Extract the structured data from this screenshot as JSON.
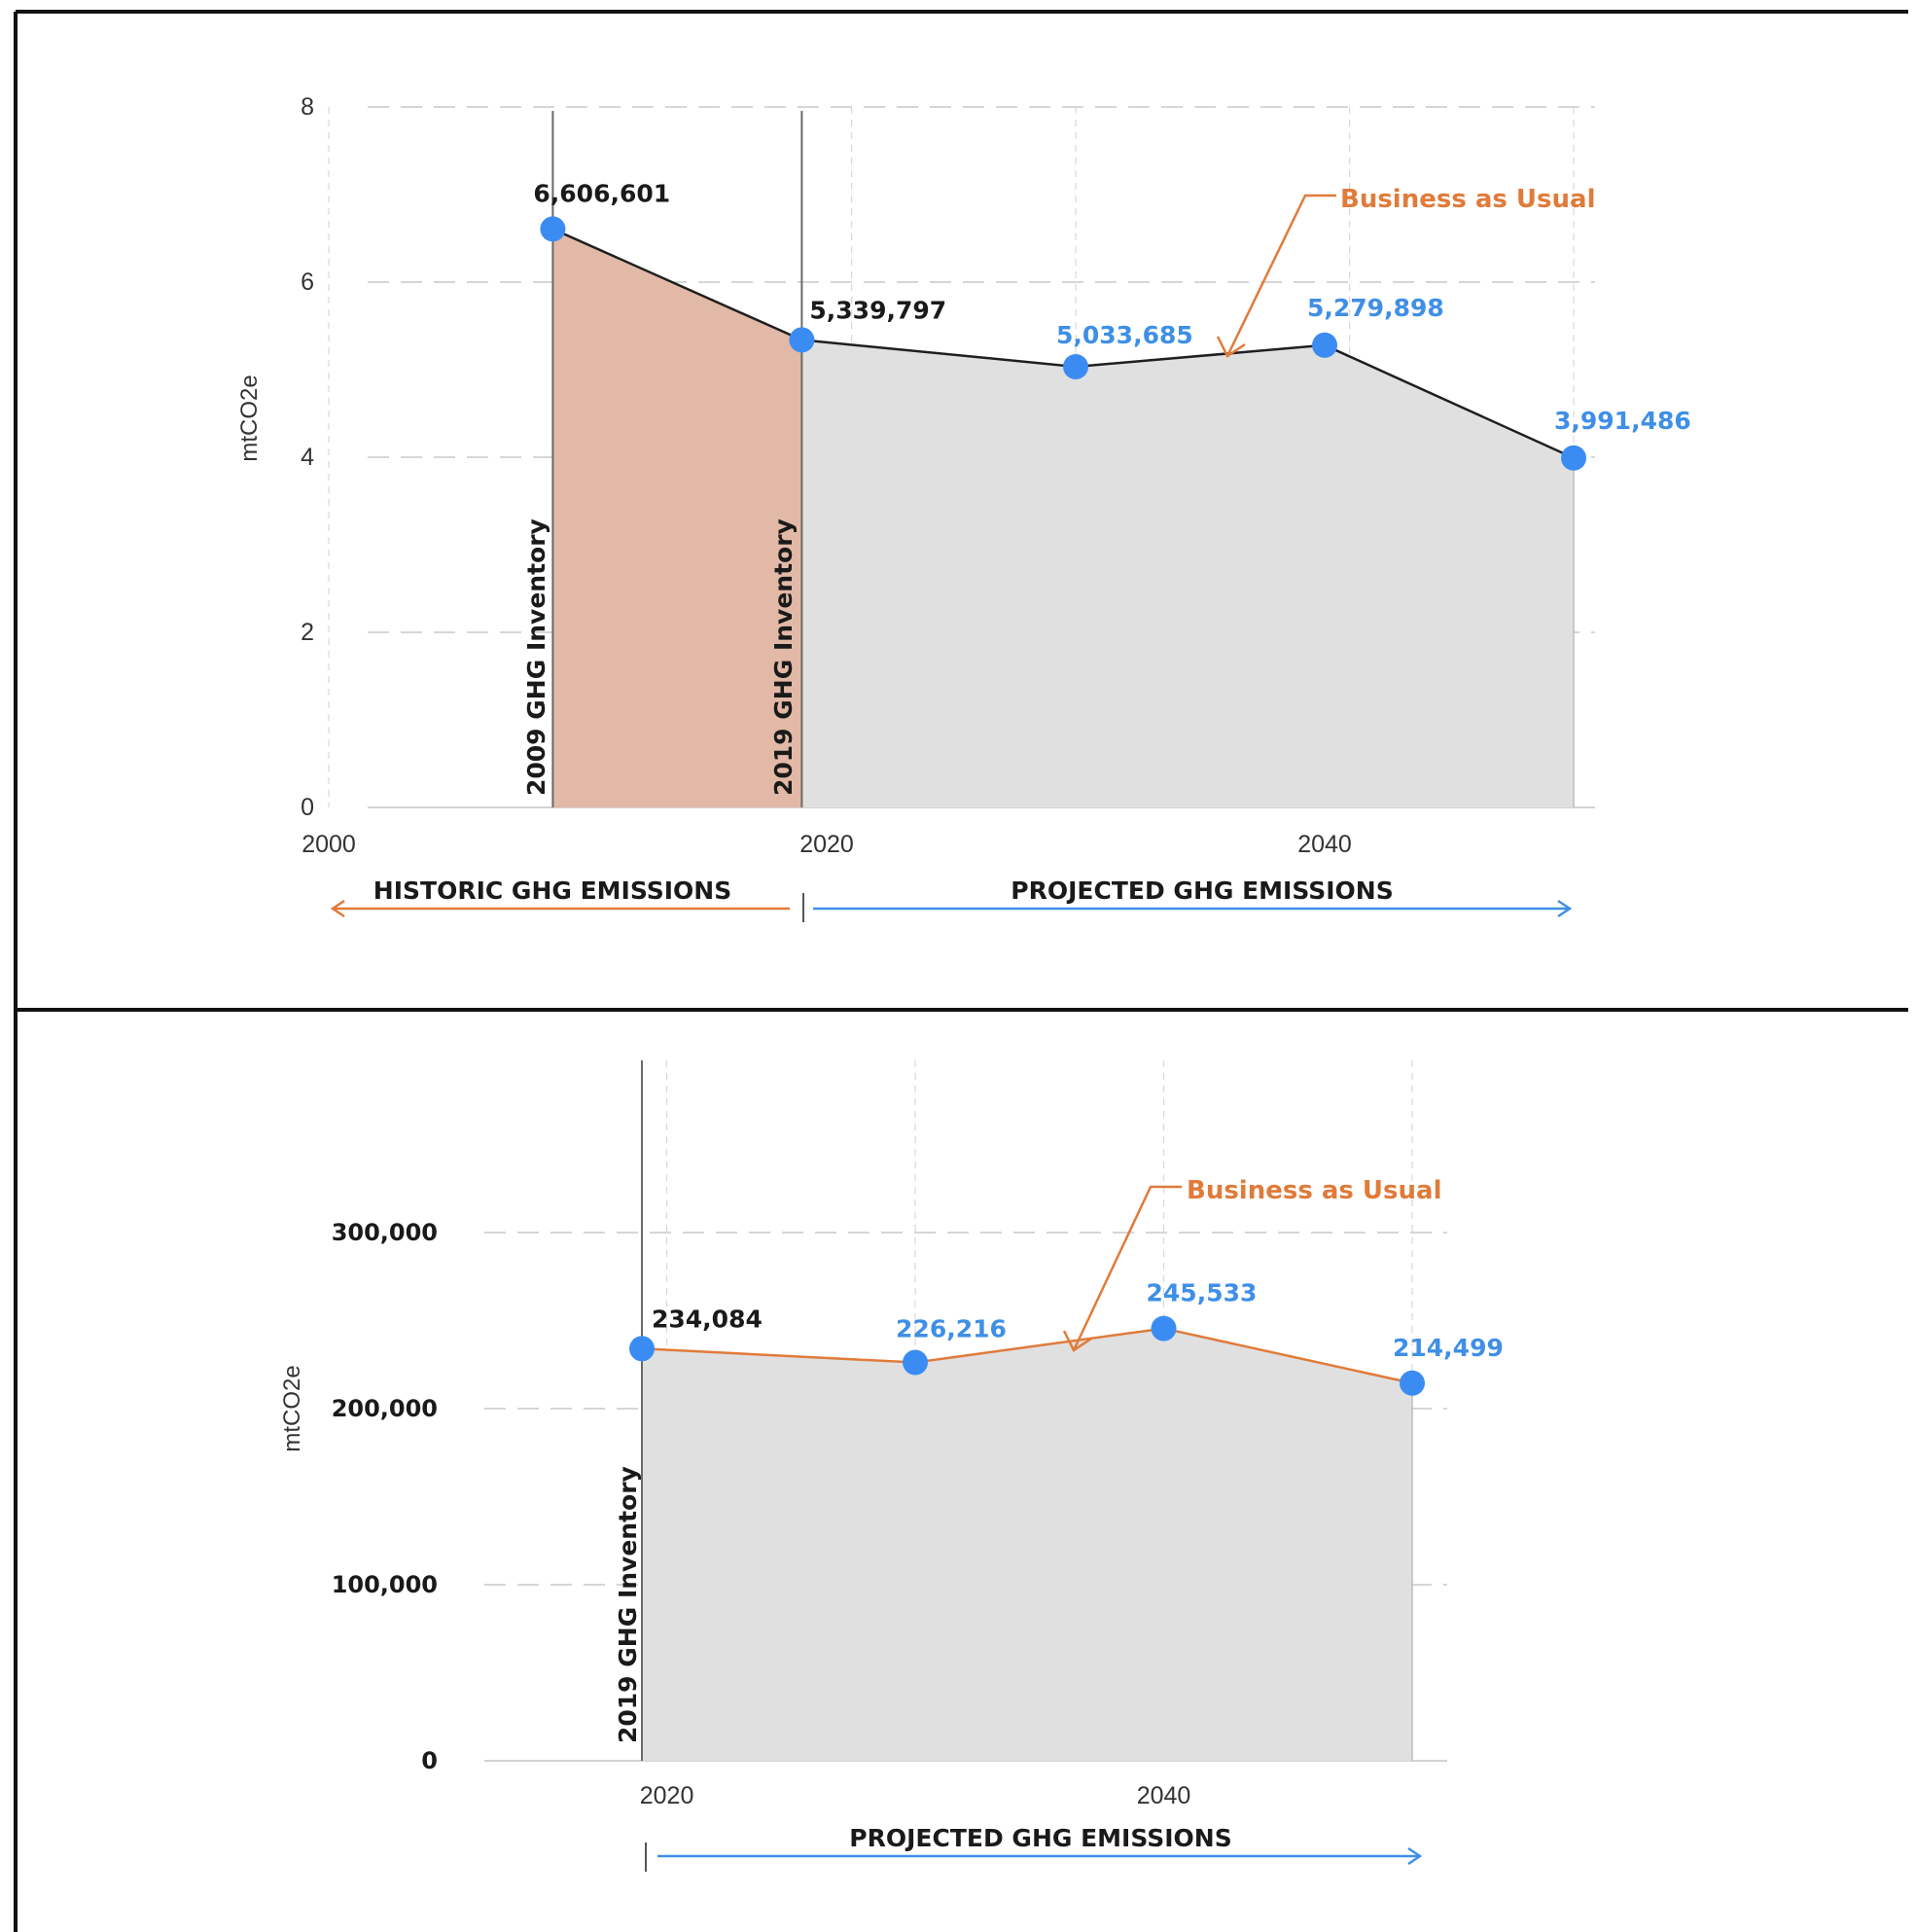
{
  "colors": {
    "accent_orange": "#e07b3a",
    "accent_blue": "#3f8fe6",
    "marker_blue": "#3b8cf2",
    "historic_fill": "#e2b9a6",
    "projected_fill": "#e0e0e0",
    "grid": "#c8c8c8",
    "frame": "#111111"
  },
  "chart_data": [
    {
      "type": "area",
      "ylabel": "mtCO2e",
      "ylim": [
        0,
        8
      ],
      "y_ticks": [
        "0",
        "2",
        "4",
        "6",
        "8"
      ],
      "xlim": [
        2000,
        2050
      ],
      "x_ticks": [
        "2000",
        "2020",
        "2040"
      ],
      "grid": true,
      "series": [
        {
          "x": [
            2009,
            2019,
            2030,
            2040,
            2050
          ],
          "values": [
            6.606601,
            5.339797,
            5.033685,
            5.279898,
            3.991486
          ],
          "labels": [
            "6,606,601",
            "5,339,797",
            "5,033,685",
            "5,279,898",
            "3,991,486"
          ]
        }
      ],
      "annotations": {
        "inventory_2009": "2009 GHG Inventory",
        "inventory_2019": "2019 GHG Inventory",
        "bau": "Business as Usual",
        "historic": "HISTORIC GHG EMISSIONS",
        "projected": "PROJECTED GHG EMISSIONS"
      }
    },
    {
      "type": "area",
      "ylabel": "mtCO2e",
      "ylim": [
        0,
        300000
      ],
      "y_ticks": [
        "0",
        "100,000",
        "200,000",
        "300,000"
      ],
      "xlim": [
        2019,
        2050
      ],
      "x_ticks": [
        "2020",
        "2040"
      ],
      "grid": true,
      "series": [
        {
          "x": [
            2019,
            2030,
            2040,
            2050
          ],
          "values": [
            234084,
            226216,
            245533,
            214499
          ],
          "labels": [
            "234,084",
            "226,216",
            "245,533",
            "214,499"
          ]
        }
      ],
      "annotations": {
        "inventory_2019": "2019 GHG Inventory",
        "bau": "Business as Usual",
        "projected": "PROJECTED GHG EMISSIONS"
      }
    }
  ]
}
